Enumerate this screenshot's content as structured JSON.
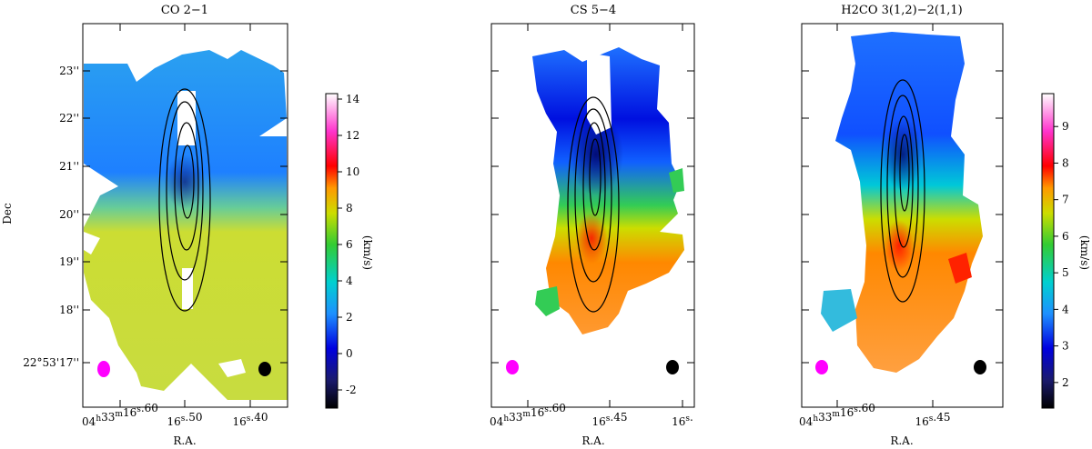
{
  "chart_data": [
    {
      "type": "heatmap",
      "title": "CO 2−1",
      "xlabel": "R.A.",
      "ylabel": "Dec",
      "x_ticks": [
        "04h33m16s.60",
        "16s.50",
        "16s.40"
      ],
      "y_ticks": [
        "23''",
        "22''",
        "21''",
        "20''",
        "19''",
        "18''",
        "22°53'17''"
      ],
      "colorbar": {
        "label": "(km/s)",
        "range": [
          -3,
          14.3
        ],
        "ticks": [
          -2,
          0,
          2,
          4,
          6,
          8,
          10,
          12,
          14
        ]
      },
      "velocity_field": {
        "north_part_km_s": 3.5,
        "south_part_km_s": 6.5,
        "center_km_s": 2.0
      },
      "contour_levels": 4,
      "beams": [
        "synthesized",
        "reference"
      ]
    },
    {
      "type": "heatmap",
      "title": "CS 5−4",
      "xlabel": "R.A.",
      "ylabel": "",
      "x_ticks": [
        "04h33m16s.60",
        "16s.45",
        "16s."
      ],
      "y_ticks": [],
      "velocity_field": {
        "north_part_km_s": 1.5,
        "south_part_km_s": 9.0,
        "center_km_s": 2.0
      },
      "contour_levels": 4,
      "beams": [
        "synthesized",
        "reference"
      ]
    },
    {
      "type": "heatmap",
      "title": "H2CO 3(1,2)−2(1,1)",
      "xlabel": "R.A.",
      "ylabel": "",
      "x_ticks": [
        "04h33m16s.60",
        "16s.45"
      ],
      "y_ticks": [],
      "colorbar": {
        "label": "(km/s)",
        "range": [
          1.3,
          9.9
        ],
        "ticks": [
          2,
          3,
          4,
          5,
          6,
          7,
          8,
          9
        ]
      },
      "velocity_field": {
        "north_part_km_s": 3.4,
        "south_part_km_s": 7.5,
        "center_km_s": 3.0
      },
      "contour_levels": 4,
      "beams": [
        "synthesized",
        "reference"
      ]
    }
  ]
}
